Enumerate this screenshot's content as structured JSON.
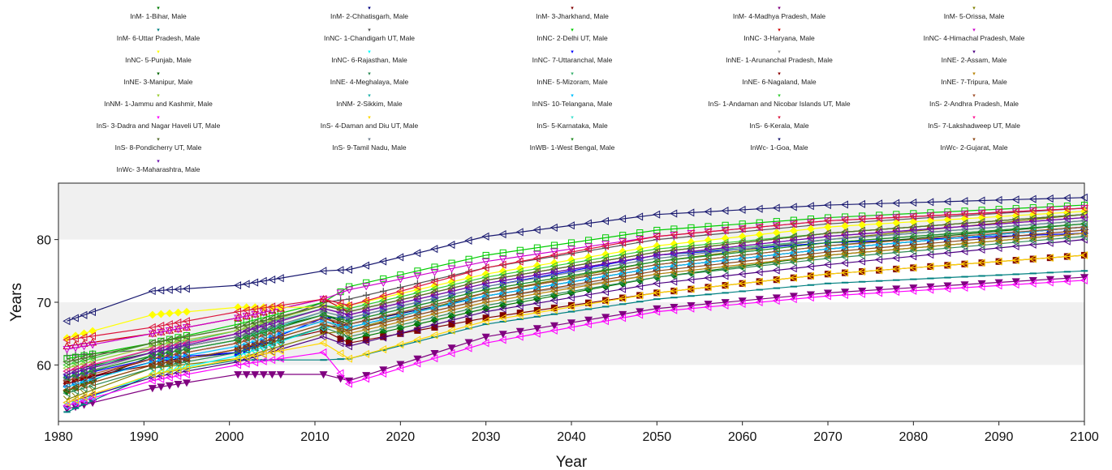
{
  "chart_data": {
    "type": "line",
    "title": "",
    "xlabel": "Year",
    "ylabel": "Years",
    "xlim": [
      1980,
      2100
    ],
    "ylim": [
      51,
      89
    ],
    "xticks": [
      1980,
      1990,
      2000,
      2010,
      2020,
      2030,
      2040,
      2050,
      2060,
      2070,
      2080,
      2090,
      2100
    ],
    "yticks": [
      60,
      70,
      80
    ],
    "grid": "alternating horizontal bands",
    "legend_position": "top",
    "series": [
      {
        "name": "InM- 1-Bihar, Male",
        "color": "#007a00",
        "marker": "diamond-filled",
        "x": [
          1981,
          1991,
          2001,
          2011,
          2014,
          2030,
          2050,
          2070,
          2100
        ],
        "y": [
          55.8,
          61.5,
          64.0,
          68.5,
          64.0,
          69.0,
          74.0,
          77.5,
          81.0
        ]
      },
      {
        "name": "InM- 2-Chhatisgarh, Male",
        "color": "#000080",
        "marker": "triangle-up",
        "x": [
          1981,
          1991,
          2001,
          2011,
          2014,
          2030,
          2050,
          2070,
          2100
        ],
        "y": [
          57.0,
          60.5,
          62.0,
          66.0,
          66.5,
          71.0,
          75.5,
          78.5,
          82.0
        ]
      },
      {
        "name": "InM- 3-Jharkhand, Male",
        "color": "#800000",
        "marker": "square-filled",
        "x": [
          1981,
          1991,
          2001,
          2011,
          2014,
          2030,
          2050,
          2070,
          2100
        ],
        "y": [
          57.5,
          60.0,
          62.5,
          65.5,
          63.5,
          67.5,
          71.5,
          74.5,
          77.5
        ]
      },
      {
        "name": "InM- 4-Madhya Pradesh, Male",
        "color": "#800080",
        "marker": "triangle-down-filled",
        "x": [
          1981,
          1991,
          2001,
          2011,
          2014,
          2030,
          2050,
          2070,
          2100
        ],
        "y": [
          53.0,
          56.3,
          58.5,
          58.5,
          57.5,
          64.5,
          69.0,
          71.5,
          74.0
        ]
      },
      {
        "name": "InM- 5-Orissa, Male",
        "color": "#808000",
        "marker": "y",
        "x": [
          1981,
          1991,
          2001,
          2011,
          2014,
          2030,
          2050,
          2070,
          2100
        ],
        "y": [
          54.5,
          59.5,
          61.0,
          65.0,
          65.5,
          71.5,
          76.5,
          80.0,
          84.0
        ]
      },
      {
        "name": "InM- 6-Uttar Pradesh, Male",
        "color": "#008080",
        "marker": "dash",
        "x": [
          1981,
          1991,
          2001,
          2011,
          2014,
          2030,
          2050,
          2070,
          2100
        ],
        "y": [
          52.5,
          58.5,
          60.8,
          60.8,
          61.0,
          66.5,
          70.5,
          73.0,
          75.0
        ]
      },
      {
        "name": "InNC- 1-Chandigarh UT, Male",
        "color": "#555555",
        "marker": "plus",
        "x": [
          1981,
          1991,
          2001,
          2011,
          2014,
          2030,
          2050,
          2070,
          2100
        ],
        "y": [
          61.5,
          62.5,
          65.0,
          70.0,
          70.5,
          75.5,
          80.0,
          82.5,
          85.0
        ]
      },
      {
        "name": "InNC- 2-Delhi UT, Male",
        "color": "#00cc00",
        "marker": "square",
        "x": [
          1981,
          1991,
          2001,
          2011,
          2014,
          2030,
          2050,
          2070,
          2100
        ],
        "y": [
          61.0,
          63.5,
          66.5,
          70.0,
          72.5,
          77.5,
          81.5,
          83.5,
          85.5
        ]
      },
      {
        "name": "InNC- 3-Haryana, Male",
        "color": "#cc0000",
        "marker": "triangle-up",
        "x": [
          1981,
          1991,
          2001,
          2011,
          2014,
          2030,
          2050,
          2070,
          2100
        ],
        "y": [
          63.0,
          65.0,
          67.5,
          70.5,
          68.5,
          73.5,
          78.0,
          81.0,
          84.0
        ]
      },
      {
        "name": "InNC- 4-Himachal Pradesh, Male",
        "color": "#cc00cc",
        "marker": "triangle-down",
        "x": [
          1981,
          1991,
          2001,
          2011,
          2014,
          2030,
          2050,
          2070,
          2100
        ],
        "y": [
          62.5,
          65.0,
          67.5,
          70.5,
          72.0,
          76.5,
          80.5,
          83.0,
          85.0
        ]
      },
      {
        "name": "InNC- 5-Punjab, Male",
        "color": "#ffff00",
        "marker": "diamond-filled",
        "x": [
          1981,
          1991,
          2001,
          2011,
          2014,
          2030,
          2050,
          2070,
          2100
        ],
        "y": [
          64.3,
          68.0,
          69.2,
          69.2,
          69.5,
          74.5,
          79.0,
          82.0,
          84.5
        ]
      },
      {
        "name": "InNC- 6-Rajasthan, Male",
        "color": "#00ffff",
        "marker": "diamond",
        "x": [
          1981,
          1991,
          2001,
          2011,
          2014,
          2030,
          2050,
          2070,
          2100
        ],
        "y": [
          53.5,
          58.5,
          61.5,
          66.0,
          66.0,
          71.0,
          75.5,
          78.5,
          82.0
        ]
      },
      {
        "name": "InNC- 7-Uttaranchal, Male",
        "color": "#0000ff",
        "marker": "triangle-right-filled",
        "x": [
          1981,
          1991,
          2001,
          2011,
          2014,
          2030,
          2050,
          2070,
          2100
        ],
        "y": [
          58.0,
          61.0,
          62.0,
          67.5,
          67.5,
          72.5,
          77.5,
          79.5,
          81.0
        ]
      },
      {
        "name": "InNE- 1-Arunanchal Pradesh, Male",
        "color": "#999999",
        "marker": "triangle-up",
        "x": [
          1981,
          1991,
          2001,
          2011,
          2014,
          2030,
          2050,
          2070,
          2100
        ],
        "y": [
          58.0,
          62.0,
          64.5,
          67.0,
          65.5,
          70.5,
          74.5,
          77.5,
          81.0
        ]
      },
      {
        "name": "InNE- 2-Assam, Male",
        "color": "#4b0082",
        "marker": "triangle-left",
        "x": [
          1981,
          1991,
          2001,
          2011,
          2014,
          2030,
          2050,
          2070,
          2100
        ],
        "y": [
          54.0,
          58.0,
          60.5,
          64.5,
          63.0,
          68.5,
          73.0,
          76.0,
          80.0
        ]
      },
      {
        "name": "InNE- 3-Manipur, Male",
        "color": "#006400",
        "marker": "triangle-left",
        "x": [
          1981,
          1991,
          2001,
          2011,
          2014,
          2030,
          2050,
          2070,
          2100
        ],
        "y": [
          59.0,
          62.0,
          64.5,
          68.0,
          66.5,
          71.5,
          76.0,
          79.0,
          82.5
        ]
      },
      {
        "name": "InNE- 4-Meghalaya, Male",
        "color": "#2e8b57",
        "marker": "triangle-left",
        "x": [
          1981,
          1991,
          2001,
          2011,
          2014,
          2030,
          2050,
          2070,
          2100
        ],
        "y": [
          55.5,
          59.5,
          62.0,
          66.0,
          64.5,
          69.5,
          74.0,
          77.0,
          80.5
        ]
      },
      {
        "name": "InNE- 5-Mizoram, Male",
        "color": "#3cb371",
        "marker": "triangle-left",
        "x": [
          1981,
          1991,
          2001,
          2011,
          2014,
          2030,
          2050,
          2070,
          2100
        ],
        "y": [
          58.5,
          62.5,
          65.5,
          69.0,
          68.0,
          73.0,
          77.5,
          80.0,
          83.0
        ]
      },
      {
        "name": "InNE- 6-Nagaland, Male",
        "color": "#8b0000",
        "marker": "triangle-left",
        "x": [
          1981,
          1991,
          2001,
          2011,
          2014,
          2030,
          2050,
          2070,
          2100
        ],
        "y": [
          57.0,
          61.0,
          63.5,
          67.5,
          66.0,
          71.0,
          75.5,
          78.5,
          82.0
        ]
      },
      {
        "name": "InNE- 7-Tripura, Male",
        "color": "#b8860b",
        "marker": "triangle-left",
        "x": [
          1981,
          1991,
          2001,
          2011,
          2014,
          2030,
          2050,
          2070,
          2100
        ],
        "y": [
          56.0,
          60.0,
          62.5,
          66.5,
          65.0,
          70.0,
          74.5,
          77.5,
          81.0
        ]
      },
      {
        "name": "InNM- 1-Jammu and Kashmir, Male",
        "color": "#9acd32",
        "marker": "triangle-left",
        "x": [
          1981,
          1991,
          2001,
          2011,
          2014,
          2030,
          2050,
          2070,
          2100
        ],
        "y": [
          59.5,
          63.0,
          65.5,
          69.5,
          68.5,
          73.5,
          78.0,
          81.0,
          84.0
        ]
      },
      {
        "name": "InNM- 2-Sikkim, Male",
        "color": "#20b2aa",
        "marker": "triangle-left",
        "x": [
          1981,
          1991,
          2001,
          2011,
          2014,
          2030,
          2050,
          2070,
          2100
        ],
        "y": [
          58.0,
          61.5,
          64.0,
          68.0,
          67.0,
          72.0,
          76.5,
          79.5,
          82.5
        ]
      },
      {
        "name": "InNS- 10-Telangana, Male",
        "color": "#00bfff",
        "marker": "triangle-left",
        "x": [
          1981,
          1991,
          2001,
          2011,
          2014,
          2030,
          2050,
          2070,
          2100
        ],
        "y": [
          56.5,
          60.5,
          63.0,
          67.0,
          66.0,
          71.0,
          75.5,
          78.5,
          82.0
        ]
      },
      {
        "name": "InS- 1-Andaman and Nicobar Islands UT, Male",
        "color": "#32cd32",
        "marker": "triangle-left",
        "x": [
          1981,
          1991,
          2001,
          2011,
          2014,
          2030,
          2050,
          2070,
          2100
        ],
        "y": [
          60.0,
          63.5,
          66.0,
          69.5,
          69.0,
          74.0,
          78.5,
          81.0,
          84.0
        ]
      },
      {
        "name": "InS- 2-Andhra Pradesh, Male",
        "color": "#a0522d",
        "marker": "triangle-left",
        "x": [
          1981,
          1991,
          2001,
          2011,
          2014,
          2030,
          2050,
          2070,
          2100
        ],
        "y": [
          57.5,
          61.0,
          63.5,
          67.5,
          66.5,
          71.5,
          76.0,
          79.0,
          82.0
        ]
      },
      {
        "name": "InS- 3-Dadra and Nagar Haveli UT, Male",
        "color": "#ff00ff",
        "marker": "triangle-left",
        "x": [
          1981,
          1991,
          2001,
          2011,
          2014,
          2030,
          2050,
          2070,
          2100
        ],
        "y": [
          53.5,
          57.5,
          60.0,
          62.0,
          57.0,
          63.5,
          68.5,
          71.0,
          73.5
        ]
      },
      {
        "name": "InS- 4-Daman and Diu UT, Male",
        "color": "#ffd700",
        "marker": "triangle-left",
        "x": [
          1981,
          1991,
          2001,
          2011,
          2014,
          2030,
          2050,
          2070,
          2100
        ],
        "y": [
          54.0,
          58.5,
          61.0,
          63.5,
          61.0,
          67.0,
          71.5,
          74.5,
          77.5
        ]
      },
      {
        "name": "InS- 5-Karnataka, Male",
        "color": "#40e0d0",
        "marker": "triangle-left",
        "x": [
          1981,
          1991,
          2001,
          2011,
          2014,
          2030,
          2050,
          2070,
          2100
        ],
        "y": [
          58.0,
          61.5,
          64.0,
          68.5,
          67.5,
          72.5,
          77.0,
          80.0,
          83.0
        ]
      },
      {
        "name": "InS- 6-Kerala, Male",
        "color": "#dc143c",
        "marker": "triangle-left",
        "x": [
          1981,
          1991,
          2001,
          2011,
          2014,
          2030,
          2050,
          2070,
          2100
        ],
        "y": [
          64.0,
          66.0,
          68.5,
          70.5,
          69.5,
          75.5,
          80.5,
          83.0,
          85.0
        ]
      },
      {
        "name": "InS- 7-Lakshadweep UT, Male",
        "color": "#ff1493",
        "marker": "triangle-left",
        "x": [
          1981,
          1991,
          2001,
          2011,
          2014,
          2030,
          2050,
          2070,
          2100
        ],
        "y": [
          59.0,
          62.5,
          65.0,
          69.0,
          68.0,
          73.0,
          77.5,
          80.5,
          83.5
        ]
      },
      {
        "name": "InS- 8-Pondicherry UT, Male",
        "color": "#556b2f",
        "marker": "triangle-left",
        "x": [
          1981,
          1991,
          2001,
          2011,
          2014,
          2030,
          2050,
          2070,
          2100
        ],
        "y": [
          60.5,
          63.5,
          66.0,
          69.5,
          68.5,
          73.5,
          78.0,
          81.0,
          84.0
        ]
      },
      {
        "name": "InS- 9-Tamil Nadu, Male",
        "color": "#708090",
        "marker": "triangle-left",
        "x": [
          1981,
          1991,
          2001,
          2011,
          2014,
          2030,
          2050,
          2070,
          2100
        ],
        "y": [
          58.5,
          62.0,
          64.5,
          68.5,
          67.5,
          72.5,
          77.0,
          80.0,
          83.0
        ]
      },
      {
        "name": "InWB- 1-West Bengal, Male",
        "color": "#228b22",
        "marker": "triangle-left",
        "x": [
          1981,
          1991,
          2001,
          2011,
          2014,
          2030,
          2050,
          2070,
          2100
        ],
        "y": [
          58.0,
          61.5,
          64.0,
          68.0,
          67.0,
          72.0,
          76.5,
          79.5,
          82.5
        ]
      },
      {
        "name": "InWc- 1-Goa, Male",
        "color": "#191970",
        "marker": "triangle-left",
        "x": [
          1981,
          1991,
          2001,
          2011,
          2014,
          2030,
          2050,
          2070,
          2100
        ],
        "y": [
          67.0,
          71.8,
          72.7,
          75.0,
          75.2,
          80.5,
          84.0,
          85.5,
          86.7
        ]
      },
      {
        "name": "InWc- 2-Gujarat, Male",
        "color": "#8b4513",
        "marker": "triangle-left",
        "x": [
          1981,
          1991,
          2001,
          2011,
          2014,
          2030,
          2050,
          2070,
          2100
        ],
        "y": [
          56.0,
          60.0,
          62.5,
          66.5,
          65.5,
          70.5,
          75.0,
          78.0,
          81.5
        ]
      },
      {
        "name": "InWc- 3-Maharashtra, Male",
        "color": "#6a0dad",
        "marker": "triangle-left",
        "x": [
          1981,
          1991,
          2001,
          2011,
          2014,
          2030,
          2050,
          2070,
          2100
        ],
        "y": [
          58.5,
          62.0,
          65.0,
          69.0,
          68.0,
          73.0,
          77.5,
          80.5,
          83.5
        ]
      }
    ]
  }
}
